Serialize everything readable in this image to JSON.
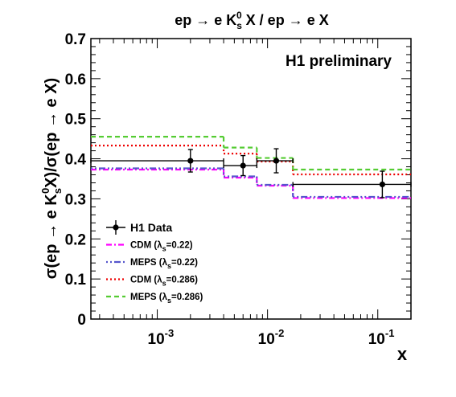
{
  "chart_data": {
    "type": "line",
    "title": "ep → e K_s^0 X / ep → e X",
    "xlabel": "x",
    "ylabel": "σ(ep → e K_s^0 X)/σ(ep → e X)",
    "annotation": "H1 preliminary",
    "x_scale": "log",
    "xlim": [
      0.00025,
      0.2
    ],
    "ylim": [
      0,
      0.7
    ],
    "y_ticks": [
      "0",
      "0.1",
      "0.2",
      "0.3",
      "0.4",
      "0.5",
      "0.6",
      "0.7"
    ],
    "x_ticks": [
      {
        "value": 0.001,
        "base": "10",
        "exp": "-3"
      },
      {
        "value": 0.01,
        "base": "10",
        "exp": "-2"
      },
      {
        "value": 0.1,
        "base": "10",
        "exp": "-1"
      }
    ],
    "x_bin_edges": [
      0.00025,
      0.004,
      0.008,
      0.017,
      0.2
    ],
    "data_points": {
      "name": "H1 Data",
      "color": "#000000",
      "x": [
        0.002,
        0.006,
        0.012,
        0.11
      ],
      "y": [
        0.395,
        0.383,
        0.395,
        0.336
      ],
      "yerr": [
        0.028,
        0.025,
        0.03,
        0.033
      ],
      "xerr_low": [
        0.00175,
        0.002,
        0.004,
        0.093
      ],
      "xerr_high": [
        0.002,
        0.002,
        0.005,
        0.09
      ]
    },
    "series": [
      {
        "name": "CDM (λ_s=0.22)",
        "label_main": "CDM (λ",
        "label_sub": "s",
        "label_tail": "=0.22)",
        "color": "#ff00ff",
        "dash": "7 3 2 3",
        "values": [
          0.373,
          0.353,
          0.333,
          0.302
        ]
      },
      {
        "name": "MEPS (λ_s=0.22)",
        "label_main": "MEPS (λ",
        "label_sub": "s",
        "label_tail": "=0.22)",
        "color": "#5555cc",
        "dash": "2 3 2 3 8 3",
        "values": [
          0.376,
          0.356,
          0.335,
          0.305
        ]
      },
      {
        "name": "CDM (λ_s=0.286)",
        "label_main": "CDM (λ",
        "label_sub": "s",
        "label_tail": "=0.286)",
        "color": "#ee0000",
        "dash": "2 3",
        "values": [
          0.433,
          0.413,
          0.393,
          0.361
        ]
      },
      {
        "name": "MEPS (λ_s=0.286)",
        "label_main": "MEPS (λ",
        "label_sub": "s",
        "label_tail": "=0.286)",
        "color": "#55cc33",
        "dash": "6 4",
        "values": [
          0.455,
          0.428,
          0.402,
          0.373
        ]
      }
    ],
    "legend_position": "bottom-left",
    "grid": false
  }
}
